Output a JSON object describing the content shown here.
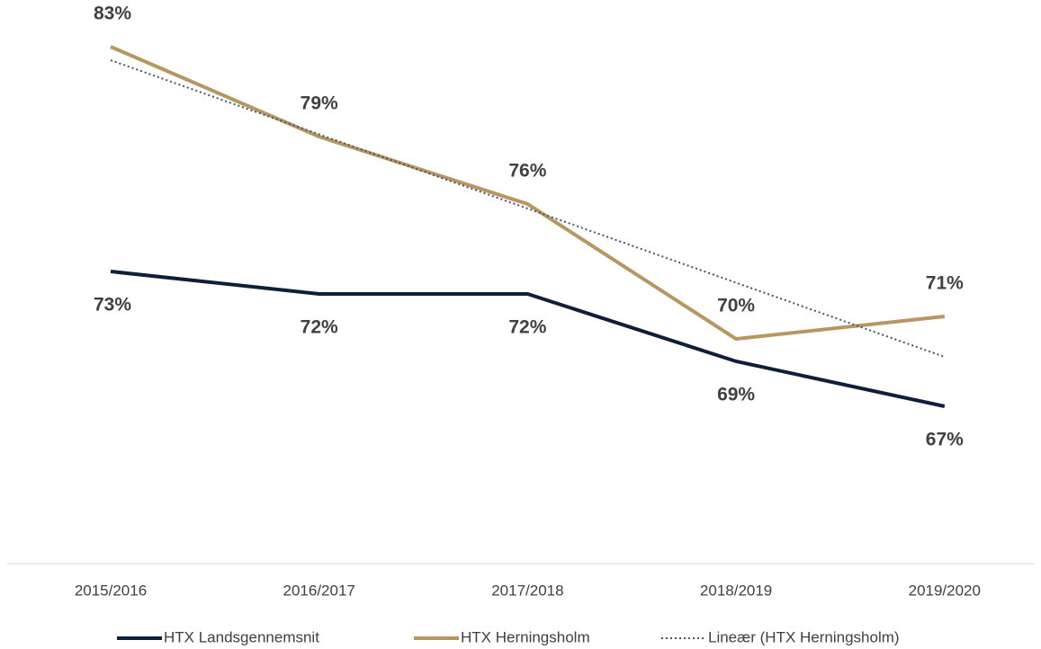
{
  "chart_data": {
    "type": "line",
    "categories": [
      "2015/2016",
      "2016/2017",
      "2017/2018",
      "2018/2019",
      "2019/2020"
    ],
    "series": [
      {
        "name": "HTX Landsgennemsnit",
        "color": "#0e1f3b",
        "values": [
          73,
          72,
          72,
          69,
          67
        ],
        "value_labels": [
          "73%",
          "72%",
          "72%",
          "69%",
          "67%"
        ],
        "label_position": "below"
      },
      {
        "name": "HTX Herningsholm",
        "color": "#b8965f",
        "values": [
          83,
          79,
          76,
          70,
          71
        ],
        "value_labels": [
          "83%",
          "79%",
          "76%",
          "70%",
          "71%"
        ],
        "label_position": "above"
      },
      {
        "name": "Lineær (HTX Herningsholm)",
        "color": "#44546a",
        "values": [
          82.4,
          79.1,
          75.8,
          72.5,
          69.2
        ],
        "dash": "dotted"
      }
    ],
    "ylim": [
      60,
      85
    ],
    "legend": "bottom"
  }
}
